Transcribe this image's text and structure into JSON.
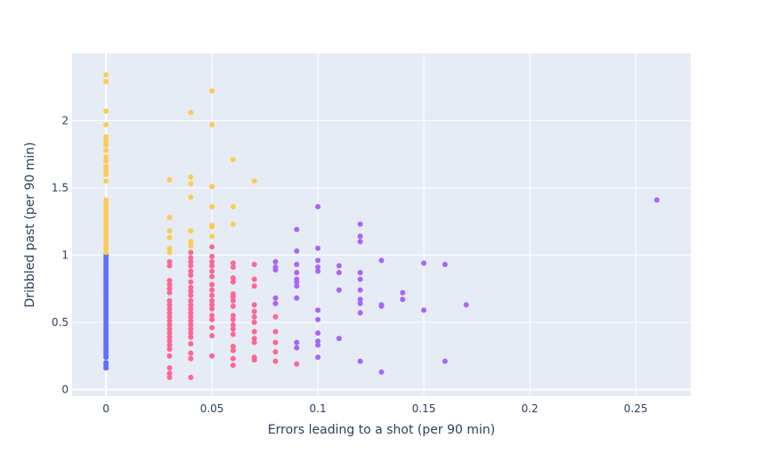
{
  "chart_data": {
    "type": "scatter",
    "title": "",
    "xlabel": "Errors leading to a shot (per 90 min)",
    "ylabel": "Dribbled past (per 90 min)",
    "xlim": [
      -0.016,
      0.276
    ],
    "ylim": [
      -0.05,
      2.5
    ],
    "x_ticks": [
      0,
      0.05,
      0.1,
      0.15,
      0.2,
      0.25
    ],
    "y_ticks": [
      0,
      0.5,
      1,
      1.5,
      2
    ],
    "grid": true,
    "legend": "none",
    "colors": {
      "background": "#e5ecf6",
      "grid": "#ffffff",
      "text": "#2a3f5f",
      "series": [
        "#636efa",
        "#ef553b",
        "#fecb52",
        "#ab63fa",
        "#ff6692"
      ]
    },
    "series": [
      {
        "color": "#636efa",
        "points": [
          [
            0,
            0.16
          ],
          [
            0,
            0.18
          ],
          [
            0,
            0.2
          ],
          [
            0,
            0.24
          ],
          [
            0,
            0.26
          ],
          [
            0,
            0.28
          ],
          [
            0,
            0.3
          ],
          [
            0,
            0.32
          ],
          [
            0,
            0.34
          ],
          [
            0,
            0.36
          ],
          [
            0,
            0.38
          ],
          [
            0,
            0.4
          ],
          [
            0,
            0.42
          ],
          [
            0,
            0.44
          ],
          [
            0,
            0.46
          ],
          [
            0,
            0.48
          ],
          [
            0,
            0.5
          ],
          [
            0,
            0.52
          ],
          [
            0,
            0.54
          ],
          [
            0,
            0.56
          ],
          [
            0,
            0.58
          ],
          [
            0,
            0.6
          ],
          [
            0,
            0.62
          ],
          [
            0,
            0.64
          ],
          [
            0,
            0.66
          ],
          [
            0,
            0.68
          ],
          [
            0,
            0.7
          ],
          [
            0,
            0.72
          ],
          [
            0,
            0.74
          ],
          [
            0,
            0.76
          ],
          [
            0,
            0.78
          ],
          [
            0,
            0.8
          ],
          [
            0,
            0.82
          ],
          [
            0,
            0.84
          ],
          [
            0,
            0.86
          ],
          [
            0,
            0.88
          ],
          [
            0,
            0.9
          ],
          [
            0,
            0.92
          ],
          [
            0,
            0.94
          ],
          [
            0,
            0.96
          ],
          [
            0,
            0.98
          ],
          [
            0,
            1.0
          ]
        ]
      },
      {
        "color": "#fecb52",
        "points": [
          [
            0,
            1.02
          ],
          [
            0,
            1.05
          ],
          [
            0,
            1.08
          ],
          [
            0,
            1.11
          ],
          [
            0,
            1.14
          ],
          [
            0,
            1.17
          ],
          [
            0,
            1.2
          ],
          [
            0,
            1.23
          ],
          [
            0,
            1.26
          ],
          [
            0,
            1.29
          ],
          [
            0,
            1.32
          ],
          [
            0,
            1.35
          ],
          [
            0,
            1.38
          ],
          [
            0,
            1.41
          ],
          [
            0,
            1.55
          ],
          [
            0,
            1.6
          ],
          [
            0,
            1.63
          ],
          [
            0,
            1.66
          ],
          [
            0,
            1.7
          ],
          [
            0,
            1.73
          ],
          [
            0,
            1.78
          ],
          [
            0,
            1.82
          ],
          [
            0,
            1.85
          ],
          [
            0,
            1.88
          ],
          [
            0,
            1.97
          ],
          [
            0,
            2.07
          ],
          [
            0,
            2.29
          ],
          [
            0,
            2.34
          ],
          [
            0.03,
            1.02
          ],
          [
            0.03,
            1.05
          ],
          [
            0.03,
            1.13
          ],
          [
            0.03,
            1.18
          ],
          [
            0.03,
            1.28
          ],
          [
            0.03,
            1.56
          ],
          [
            0.04,
            1.07
          ],
          [
            0.04,
            1.1
          ],
          [
            0.04,
            1.18
          ],
          [
            0.04,
            1.43
          ],
          [
            0.04,
            1.53
          ],
          [
            0.04,
            1.58
          ],
          [
            0.04,
            2.06
          ],
          [
            0.05,
            1.14
          ],
          [
            0.05,
            1.21
          ],
          [
            0.05,
            1.22
          ],
          [
            0.05,
            1.36
          ],
          [
            0.05,
            1.51
          ],
          [
            0.05,
            1.97
          ],
          [
            0.05,
            2.22
          ],
          [
            0.06,
            1.23
          ],
          [
            0.06,
            1.36
          ],
          [
            0.06,
            1.71
          ],
          [
            0.07,
            1.55
          ]
        ]
      },
      {
        "color": "#ff6692",
        "points": [
          [
            0.03,
            0.09
          ],
          [
            0.03,
            0.12
          ],
          [
            0.03,
            0.16
          ],
          [
            0.03,
            0.25
          ],
          [
            0.03,
            0.3
          ],
          [
            0.03,
            0.33
          ],
          [
            0.03,
            0.36
          ],
          [
            0.03,
            0.39
          ],
          [
            0.03,
            0.42
          ],
          [
            0.03,
            0.45
          ],
          [
            0.03,
            0.48
          ],
          [
            0.03,
            0.51
          ],
          [
            0.03,
            0.54
          ],
          [
            0.03,
            0.57
          ],
          [
            0.03,
            0.6
          ],
          [
            0.03,
            0.63
          ],
          [
            0.03,
            0.66
          ],
          [
            0.03,
            0.72
          ],
          [
            0.03,
            0.75
          ],
          [
            0.03,
            0.78
          ],
          [
            0.03,
            0.81
          ],
          [
            0.03,
            0.92
          ],
          [
            0.03,
            0.95
          ],
          [
            0.04,
            0.09
          ],
          [
            0.04,
            0.23
          ],
          [
            0.04,
            0.27
          ],
          [
            0.04,
            0.34
          ],
          [
            0.04,
            0.39
          ],
          [
            0.04,
            0.42
          ],
          [
            0.04,
            0.45
          ],
          [
            0.04,
            0.48
          ],
          [
            0.04,
            0.51
          ],
          [
            0.04,
            0.54
          ],
          [
            0.04,
            0.57
          ],
          [
            0.04,
            0.6
          ],
          [
            0.04,
            0.63
          ],
          [
            0.04,
            0.66
          ],
          [
            0.04,
            0.7
          ],
          [
            0.04,
            0.73
          ],
          [
            0.04,
            0.76
          ],
          [
            0.04,
            0.8
          ],
          [
            0.04,
            0.85
          ],
          [
            0.04,
            0.88
          ],
          [
            0.04,
            0.92
          ],
          [
            0.04,
            0.95
          ],
          [
            0.04,
            0.98
          ],
          [
            0.04,
            1.02
          ],
          [
            0.05,
            0.25
          ],
          [
            0.05,
            0.4
          ],
          [
            0.05,
            0.46
          ],
          [
            0.05,
            0.52
          ],
          [
            0.05,
            0.55
          ],
          [
            0.05,
            0.6
          ],
          [
            0.05,
            0.63
          ],
          [
            0.05,
            0.66
          ],
          [
            0.05,
            0.7
          ],
          [
            0.05,
            0.74
          ],
          [
            0.05,
            0.78
          ],
          [
            0.05,
            0.84
          ],
          [
            0.05,
            0.88
          ],
          [
            0.05,
            0.92
          ],
          [
            0.05,
            0.95
          ],
          [
            0.05,
            0.99
          ],
          [
            0.05,
            1.06
          ],
          [
            0.06,
            0.18
          ],
          [
            0.06,
            0.23
          ],
          [
            0.06,
            0.29
          ],
          [
            0.06,
            0.32
          ],
          [
            0.06,
            0.41
          ],
          [
            0.06,
            0.45
          ],
          [
            0.06,
            0.48
          ],
          [
            0.06,
            0.52
          ],
          [
            0.06,
            0.55
          ],
          [
            0.06,
            0.62
          ],
          [
            0.06,
            0.66
          ],
          [
            0.06,
            0.69
          ],
          [
            0.06,
            0.71
          ],
          [
            0.06,
            0.8
          ],
          [
            0.06,
            0.83
          ],
          [
            0.06,
            0.91
          ],
          [
            0.06,
            0.94
          ],
          [
            0.07,
            0.22
          ],
          [
            0.07,
            0.24
          ],
          [
            0.07,
            0.35
          ],
          [
            0.07,
            0.38
          ],
          [
            0.07,
            0.43
          ],
          [
            0.07,
            0.5
          ],
          [
            0.07,
            0.54
          ],
          [
            0.07,
            0.58
          ],
          [
            0.07,
            0.63
          ],
          [
            0.07,
            0.77
          ],
          [
            0.07,
            0.82
          ],
          [
            0.07,
            0.93
          ],
          [
            0.08,
            0.21
          ],
          [
            0.08,
            0.28
          ],
          [
            0.08,
            0.35
          ],
          [
            0.08,
            0.43
          ],
          [
            0.08,
            0.54
          ],
          [
            0.09,
            0.19
          ]
        ]
      },
      {
        "color": "#ab63fa",
        "points": [
          [
            0.08,
            0.64
          ],
          [
            0.08,
            0.68
          ],
          [
            0.08,
            0.89
          ],
          [
            0.08,
            0.91
          ],
          [
            0.08,
            0.95
          ],
          [
            0.09,
            0.31
          ],
          [
            0.09,
            0.35
          ],
          [
            0.09,
            0.68
          ],
          [
            0.09,
            0.77
          ],
          [
            0.09,
            0.8
          ],
          [
            0.09,
            0.82
          ],
          [
            0.09,
            0.87
          ],
          [
            0.09,
            0.93
          ],
          [
            0.09,
            1.03
          ],
          [
            0.09,
            1.19
          ],
          [
            0.1,
            0.24
          ],
          [
            0.1,
            0.33
          ],
          [
            0.1,
            0.36
          ],
          [
            0.1,
            0.42
          ],
          [
            0.1,
            0.52
          ],
          [
            0.1,
            0.59
          ],
          [
            0.1,
            0.88
          ],
          [
            0.1,
            0.91
          ],
          [
            0.1,
            0.96
          ],
          [
            0.1,
            1.05
          ],
          [
            0.1,
            1.36
          ],
          [
            0.11,
            0.38
          ],
          [
            0.11,
            0.74
          ],
          [
            0.11,
            0.87
          ],
          [
            0.11,
            0.92
          ],
          [
            0.12,
            0.21
          ],
          [
            0.12,
            0.57
          ],
          [
            0.12,
            0.64
          ],
          [
            0.12,
            0.67
          ],
          [
            0.12,
            0.74
          ],
          [
            0.12,
            0.82
          ],
          [
            0.12,
            0.87
          ],
          [
            0.12,
            1.1
          ],
          [
            0.12,
            1.14
          ],
          [
            0.12,
            1.23
          ],
          [
            0.13,
            0.13
          ],
          [
            0.13,
            0.62
          ],
          [
            0.13,
            0.63
          ],
          [
            0.13,
            0.96
          ],
          [
            0.14,
            0.67
          ],
          [
            0.14,
            0.72
          ],
          [
            0.15,
            0.59
          ],
          [
            0.15,
            0.94
          ],
          [
            0.16,
            0.21
          ],
          [
            0.16,
            0.93
          ],
          [
            0.17,
            0.63
          ],
          [
            0.26,
            1.41
          ]
        ]
      }
    ]
  }
}
